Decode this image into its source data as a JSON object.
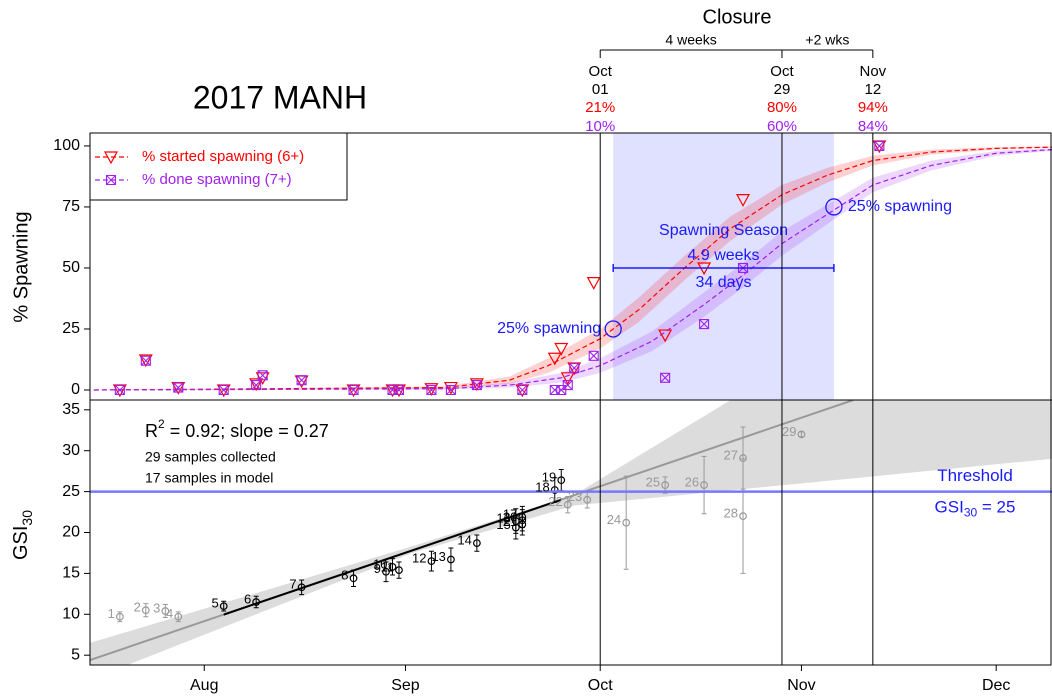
{
  "chart_data": [
    {
      "type": "scatter",
      "title": "2017 MANH",
      "ylabel": "% Spawning",
      "xlim": [
        195.4,
        343.6
      ],
      "ylim": [
        -4.1,
        105.3
      ],
      "yticks": [
        0,
        25,
        50,
        75,
        100
      ],
      "legend": "top-left",
      "series": [
        {
          "name": "% started spawning (6+)",
          "color": "#ff0000",
          "marker": "triangle",
          "x": [
            200,
            204,
            209,
            216,
            221,
            222,
            228,
            236,
            242,
            243,
            248,
            251,
            255,
            262,
            267,
            268,
            269,
            270,
            273,
            284,
            290,
            296,
            317
          ],
          "values": [
            0,
            12.3,
            1,
            0,
            2.5,
            5,
            3.7,
            0,
            0,
            0,
            0.5,
            1,
            2.5,
            0,
            13,
            17,
            5,
            9,
            44,
            22.5,
            50,
            78,
            100
          ],
          "fit": {
            "x": [
              196,
              250,
              260,
              266,
              274,
              280,
              287,
              294,
              302,
              309,
              316,
              325,
              335,
              343.6
            ],
            "values": [
              0,
              1,
              4,
              10,
              21,
              33,
              50,
              66,
              80,
              88,
              94,
              97.5,
              99,
              99.5
            ],
            "lower": [
              0,
              0.5,
              2.5,
              7,
              17,
              28,
              45,
              61,
              76,
              85,
              92,
              96.5,
              98.5,
              99.2
            ],
            "upper": [
              0,
              1.5,
              5.5,
              13,
              25,
              38,
              55,
              71,
              84,
              91,
              96,
              98.5,
              99.5,
              99.8
            ]
          }
        },
        {
          "name": "% done spawning (7+)",
          "color": "#a020f0",
          "marker": "square",
          "x": [
            200,
            204,
            209,
            216,
            221,
            222,
            228,
            236,
            242,
            243,
            248,
            251,
            255,
            262,
            267,
            268,
            269,
            270,
            273,
            284,
            290,
            296,
            317
          ],
          "values": [
            0,
            12,
            1,
            0,
            2,
            6,
            4,
            0,
            0,
            0,
            0,
            0,
            2,
            0,
            0,
            0,
            2,
            9,
            14,
            5,
            27,
            50,
            100
          ],
          "fit": {
            "x": [
              196,
              250,
              260,
              268,
              274,
              282,
              290,
              296,
              302,
              309,
              316,
              325,
              335,
              343.6
            ],
            "values": [
              0,
              0.5,
              2,
              5,
              10,
              20,
              35,
              47,
              60,
              72,
              84,
              92,
              97,
              98.5
            ],
            "lower": [
              0,
              0.2,
              1,
              3,
              7,
              16,
              30,
              42,
              55,
              68,
              81,
              90,
              96,
              98
            ],
            "upper": [
              0,
              0.8,
              3,
              7,
              13,
              24,
              40,
              52,
              65,
              76,
              87,
              94,
              98,
              99
            ]
          }
        }
      ],
      "season": {
        "start": 276,
        "end": 310,
        "y": 50,
        "label": "Spawning Season",
        "weeks": "4.9 weeks",
        "days": "34 days",
        "color": "#e0e0ff"
      },
      "onset_markers": {
        "x": [
          276,
          310
        ],
        "values": [
          25,
          75
        ],
        "label": "25% spawning",
        "color": "#1a1aff"
      },
      "closure": {
        "title": "Closure",
        "periods": [
          "4 weeks",
          "+2 wks"
        ],
        "x": [
          274,
          302,
          316
        ],
        "months": [
          "Oct",
          "Oct",
          "Nov"
        ],
        "days": [
          "01",
          "29",
          "12"
        ],
        "started": [
          21,
          80,
          94
        ],
        "started_labels": [
          "21%",
          "80%",
          "94%"
        ],
        "done": [
          10,
          60,
          84
        ],
        "done_labels": [
          "10%",
          "60%",
          "84%"
        ]
      }
    },
    {
      "type": "scatter",
      "ylabel": "GSI",
      "ylabel_sub": "30",
      "xlim": [
        195.4,
        343.6
      ],
      "ylim": [
        3.8,
        36.2
      ],
      "yticks": [
        5,
        10,
        15,
        20,
        25,
        30,
        35
      ],
      "xticks": [
        {
          "value": 213,
          "label": "Aug"
        },
        {
          "value": 244,
          "label": "Sep"
        },
        {
          "value": 274,
          "label": "Oct"
        },
        {
          "value": 305,
          "label": "Nov"
        },
        {
          "value": 335,
          "label": "Dec"
        }
      ],
      "points": {
        "x": [
          200,
          204,
          207,
          209,
          216,
          221,
          228,
          236,
          241,
          242,
          243,
          248,
          251,
          255,
          261,
          261,
          262,
          267,
          268,
          262,
          262,
          269,
          272,
          278,
          284,
          290,
          296,
          296,
          305
        ],
        "values": [
          9.7,
          10.5,
          10.4,
          9.7,
          11,
          11.5,
          13.3,
          14.4,
          15.2,
          15.8,
          15.4,
          16.5,
          16.7,
          18.7,
          20.6,
          21.4,
          21.9,
          25.2,
          26.4,
          21.5,
          21,
          23.4,
          24,
          21.2,
          25.8,
          25.8,
          29.1,
          22,
          32
        ],
        "errors": [
          0.6,
          0.8,
          0.8,
          0.6,
          0.6,
          0.7,
          0.9,
          1,
          1.2,
          1,
          1,
          1.2,
          1.4,
          1,
          1.4,
          1.5,
          1.3,
          1.5,
          1.3,
          1.3,
          1.3,
          1,
          1,
          5.7,
          1,
          3.5,
          3.8,
          7,
          0.3
        ],
        "labels": [
          "1",
          "2",
          "3",
          "4",
          "5",
          "6",
          "7",
          "8",
          "9",
          "10",
          "11",
          "12",
          "13",
          "14",
          "15",
          "16",
          "17",
          "18",
          "19",
          "20",
          "21",
          "22",
          "23",
          "24",
          "25",
          "26",
          "27",
          "28",
          "29"
        ],
        "in_model": [
          false,
          false,
          false,
          false,
          true,
          true,
          true,
          true,
          true,
          true,
          true,
          true,
          true,
          true,
          true,
          true,
          true,
          true,
          true,
          true,
          true,
          false,
          false,
          false,
          false,
          false,
          false,
          false,
          false
        ]
      },
      "fit": {
        "x": [
          195.4,
          313
        ],
        "values": [
          4.4,
          36.2
        ],
        "model_x": [
          216,
          268
        ],
        "model_values": [
          9.96,
          24
        ]
      },
      "fit_band": {
        "x": [
          195.4,
          245,
          270,
          343.6
        ],
        "lower": [
          2,
          17.5,
          23.3,
          29
        ],
        "upper": [
          6.5,
          18.3,
          24.6,
          60
        ]
      },
      "threshold": {
        "value": 25,
        "label": "Threshold",
        "text": "GSI",
        "sub": "30",
        "suffix": " = 25",
        "color": "#7777ff"
      },
      "stats": {
        "r": "R",
        "sup": "2",
        "text": " = 0.92; slope = 0.27",
        "collected": "29 samples collected",
        "in_model": "17 samples in model"
      }
    }
  ]
}
